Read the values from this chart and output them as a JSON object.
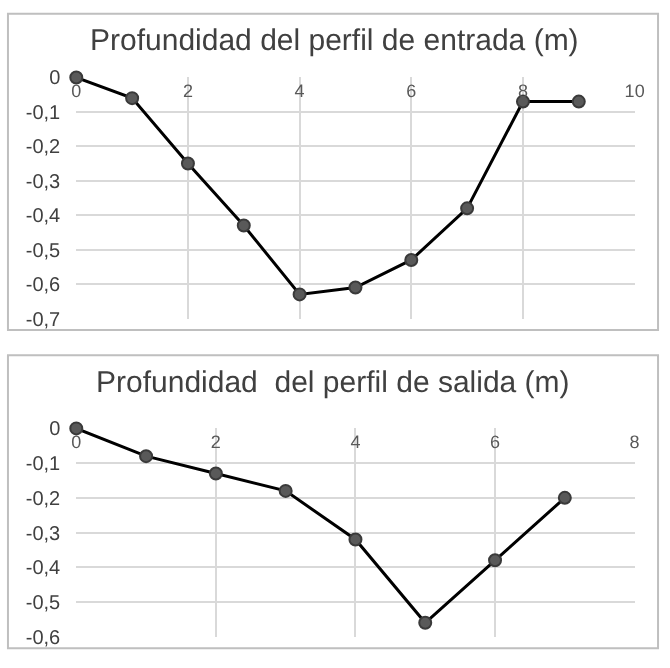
{
  "chart_data": [
    {
      "type": "line",
      "title": "Profundidad del perfil de entrada (m)",
      "x": [
        0,
        1,
        2,
        3,
        4,
        5,
        6,
        7,
        8,
        9
      ],
      "series": [
        {
          "color": "#000000",
          "values": [
            0,
            -0.06,
            -0.25,
            -0.43,
            -0.63,
            -0.61,
            -0.53,
            -0.38,
            -0.07,
            -0.07
          ]
        }
      ],
      "xlim": [
        0,
        10
      ],
      "xticks": [
        0,
        2,
        4,
        6,
        8,
        10
      ],
      "ylim": [
        -0.7,
        0
      ],
      "yticks": [
        0,
        {
          "value": -0.1,
          "label": "-0,1"
        },
        {
          "value": -0.2,
          "label": "-0,2"
        },
        {
          "value": -0.3,
          "label": "-0,3"
        },
        {
          "value": -0.4,
          "label": "-0,4"
        },
        {
          "value": -0.5,
          "label": "-0,5"
        },
        {
          "value": -0.6,
          "label": "-0,6"
        },
        {
          "value": -0.7,
          "label": "-0,7"
        }
      ],
      "grid": true,
      "marker": "circle",
      "line_style": "solid"
    },
    {
      "type": "line",
      "title": "Profundidad  del perfil de salida (m)",
      "x": [
        0,
        1,
        2,
        3,
        4,
        5,
        6,
        7
      ],
      "series": [
        {
          "color": "#000000",
          "values": [
            0,
            -0.08,
            -0.13,
            -0.18,
            -0.32,
            -0.56,
            -0.38,
            -0.2
          ]
        }
      ],
      "xlim": [
        0,
        8
      ],
      "xticks": [
        0,
        2,
        4,
        6,
        8
      ],
      "ylim": [
        -0.6,
        0
      ],
      "yticks": [
        0,
        {
          "value": -0.1,
          "label": "-0,1"
        },
        {
          "value": -0.2,
          "label": "-0,2"
        },
        {
          "value": -0.3,
          "label": "-0,3"
        },
        {
          "value": -0.4,
          "label": "-0,4"
        },
        {
          "value": -0.5,
          "label": "-0,5"
        },
        {
          "value": -0.6,
          "label": "-0,6"
        }
      ],
      "grid": true,
      "marker": "circle",
      "line_style": "solid"
    }
  ]
}
